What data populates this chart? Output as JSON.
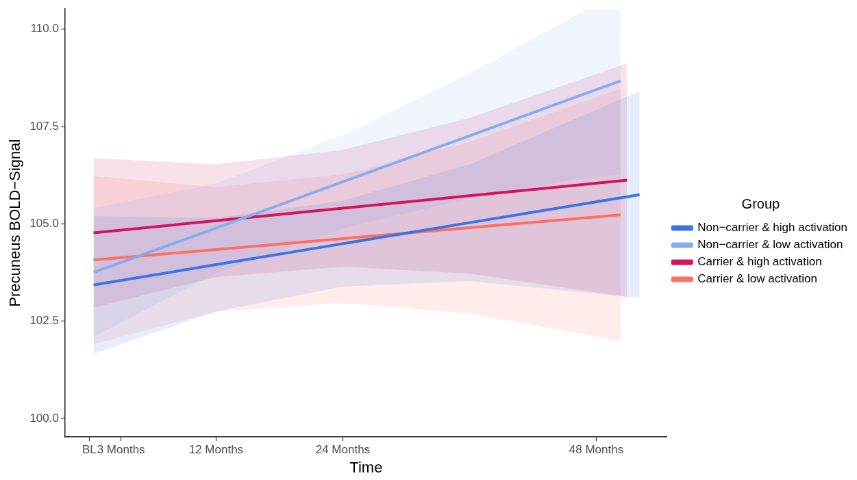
{
  "chart_data": {
    "type": "line",
    "xlabel": "Time",
    "ylabel": "Precuneus BOLD−Signal",
    "legend_title": "Group",
    "xlim": [
      -2.3,
      54.7
    ],
    "ylim": [
      99.52,
      110.52
    ],
    "xticks": [
      {
        "value": 0,
        "label": "BL"
      },
      {
        "value": 3,
        "label": "3 Months"
      },
      {
        "value": 12,
        "label": "12 Months"
      },
      {
        "value": 24,
        "label": "24 Months"
      },
      {
        "value": 48,
        "label": "48 Months"
      }
    ],
    "yticks": [
      {
        "value": 100,
        "label": "100.0"
      },
      {
        "value": 102.5,
        "label": "102.5"
      },
      {
        "value": 105,
        "label": "105.0"
      },
      {
        "value": 107.5,
        "label": "107.5"
      },
      {
        "value": 110,
        "label": "110.0"
      }
    ],
    "grid": false,
    "legend": "right",
    "marker": "none",
    "line_style": "solid",
    "series": [
      {
        "name": "Non−carrier & high activation",
        "color": "#3b74e6",
        "x": [
          0.4,
          12,
          24,
          36,
          52.1
        ],
        "values": [
          103.43,
          103.95,
          104.49,
          105.03,
          105.75
        ],
        "lower": [
          101.66,
          102.75,
          103.39,
          103.53,
          103.09
        ],
        "upper": [
          105.2,
          105.15,
          105.59,
          106.53,
          108.41
        ]
      },
      {
        "name": "Non−carrier & low activation",
        "color": "#86acee",
        "x": [
          0.4,
          12,
          24,
          36,
          47,
          50.3
        ],
        "values": [
          103.75,
          104.89,
          106.08,
          107.26,
          108.35,
          108.67
        ],
        "lower": [
          102.1,
          103.74,
          104.88,
          105.66,
          106.2,
          106.27
        ],
        "upper": [
          105.4,
          106.04,
          107.28,
          108.86,
          110.5,
          110.5
        ]
      },
      {
        "name": "Carrier & high activation",
        "color": "#d4145a",
        "x": [
          0.4,
          12,
          24,
          36,
          50.9
        ],
        "values": [
          104.77,
          105.08,
          105.4,
          105.72,
          106.12
        ],
        "lower": [
          102.85,
          103.63,
          103.9,
          103.72,
          103.12
        ],
        "upper": [
          106.69,
          106.53,
          106.9,
          107.72,
          109.12
        ]
      },
      {
        "name": "Carrier & low activation",
        "color": "#ff6f61",
        "x": [
          0.4,
          12,
          24,
          36,
          50.3
        ],
        "values": [
          104.07,
          104.34,
          104.62,
          104.9,
          105.23
        ],
        "lower": [
          101.91,
          102.74,
          102.97,
          102.7,
          101.99
        ],
        "upper": [
          106.23,
          105.94,
          106.27,
          107.1,
          108.47
        ]
      }
    ]
  }
}
